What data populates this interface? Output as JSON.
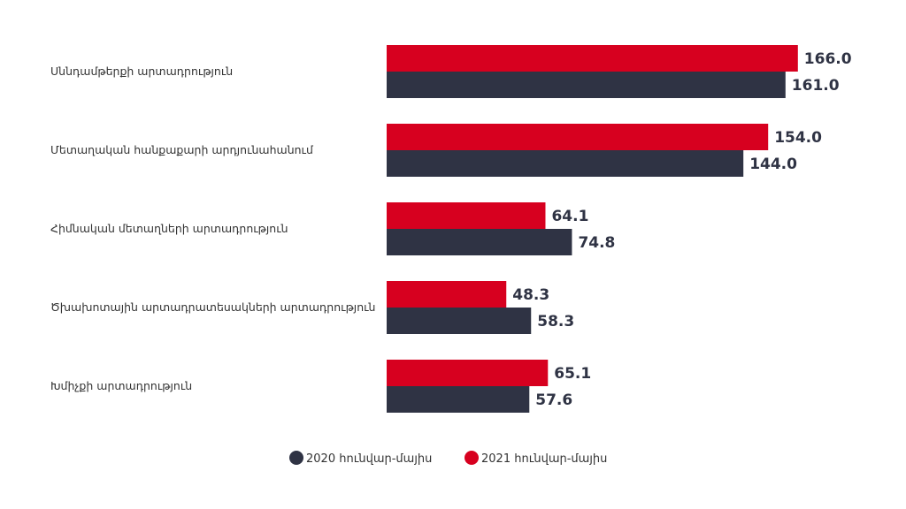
{
  "chart_data": {
    "type": "bar",
    "orientation": "horizontal",
    "categories": [
      "Սննդամթերքի արտադրություն",
      "Մետաղական հանքաքարի արդյունահանում",
      "Հիմնական մետաղների արտադրություն",
      "Ծխախոտային արտադրատեսակների արտադրություն",
      "Խմիչքի արտադրություն"
    ],
    "series": [
      {
        "name": "2021 հունվար-մայիս",
        "color": "#d7001f",
        "values": [
          166.0,
          154.0,
          64.1,
          48.3,
          65.1
        ]
      },
      {
        "name": "2020 հունվար-մայիս",
        "color": "#2f3344",
        "values": [
          161.0,
          144.0,
          74.8,
          58.3,
          57.6
        ]
      }
    ],
    "value_labels": {
      "2021": [
        "166.0",
        "154.0",
        "64.1",
        "48.3",
        "65.1"
      ],
      "2020": [
        "161.0",
        "144.0",
        "74.8",
        "58.3",
        "57.6"
      ]
    },
    "legend": {
      "placement": "bottom",
      "items": [
        {
          "label": "2020 հունվար-մայիս",
          "color": "#2f3344"
        },
        {
          "label": "2021 հունվար-մայիս",
          "color": "#d7001f"
        }
      ]
    },
    "title": "",
    "xlabel": "",
    "ylabel": "",
    "grid": false
  }
}
